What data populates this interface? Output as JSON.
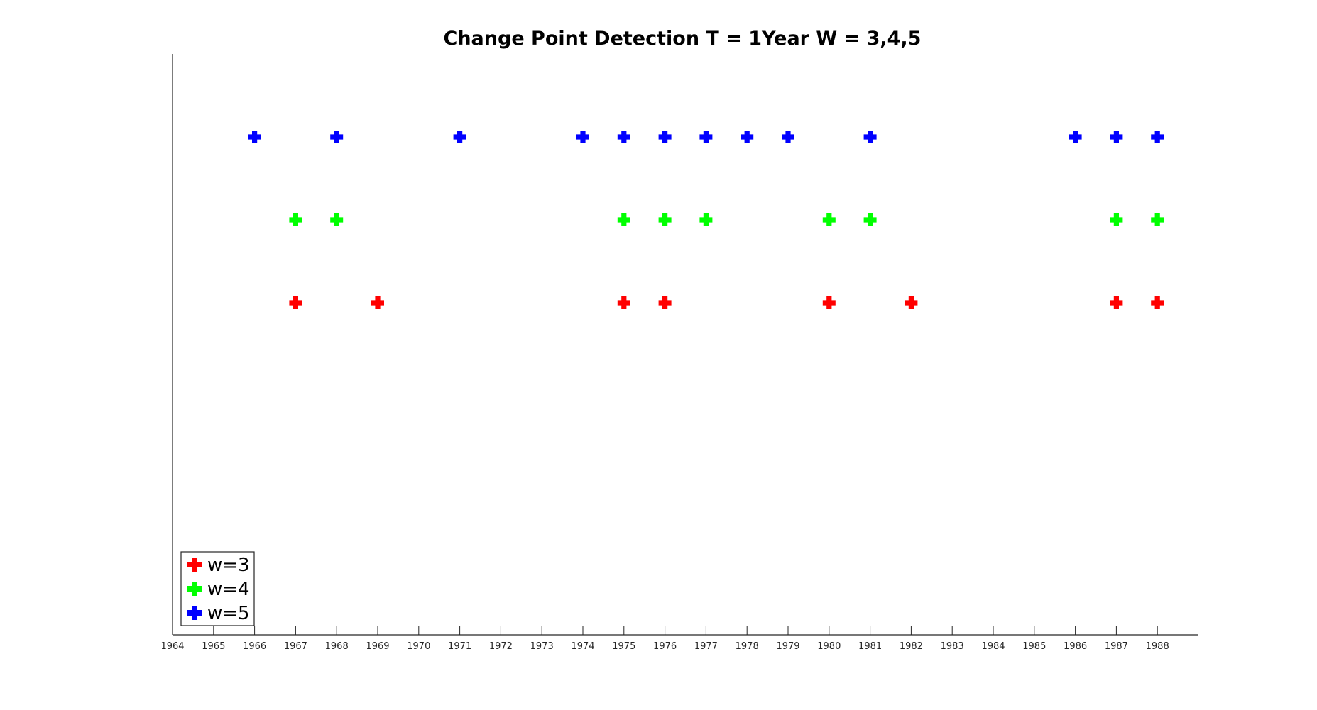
{
  "chart_data": {
    "type": "scatter",
    "title": "Change Point Detection T = 1Year W = 3,4,5",
    "xlabel": "",
    "ylabel": "",
    "xlim": [
      1964,
      1989
    ],
    "ylim": [
      0,
      7
    ],
    "x_ticks": [
      1964,
      1965,
      1966,
      1967,
      1968,
      1969,
      1970,
      1971,
      1972,
      1973,
      1974,
      1975,
      1976,
      1977,
      1978,
      1979,
      1980,
      1981,
      1982,
      1983,
      1984,
      1985,
      1986,
      1987,
      1988
    ],
    "x_tick_labels": [
      "1964",
      "1965",
      "1966",
      "1967",
      "1968",
      "1969",
      "1970",
      "1971",
      "1972",
      "1973",
      "1974",
      "1975",
      "1976",
      "1977",
      "1978",
      "1979",
      "1980",
      "1981",
      "1982",
      "1983",
      "1984",
      "1985",
      "1986",
      "1987",
      "1988"
    ],
    "y_ticks_shown": false,
    "grid": false,
    "legend_position": "bottom-left",
    "marker": "plus",
    "series": [
      {
        "name": "w=3",
        "color": "#ff0000",
        "y": 4,
        "x": [
          1967,
          1969,
          1975,
          1976,
          1980,
          1982,
          1987,
          1988
        ]
      },
      {
        "name": "w=4",
        "color": "#00ff00",
        "y": 5,
        "x": [
          1967,
          1968,
          1975,
          1976,
          1977,
          1980,
          1981,
          1987,
          1988
        ]
      },
      {
        "name": "w=5",
        "color": "#0000ff",
        "y": 6,
        "x": [
          1966,
          1968,
          1971,
          1974,
          1975,
          1976,
          1977,
          1978,
          1979,
          1981,
          1986,
          1987,
          1988
        ]
      }
    ]
  }
}
